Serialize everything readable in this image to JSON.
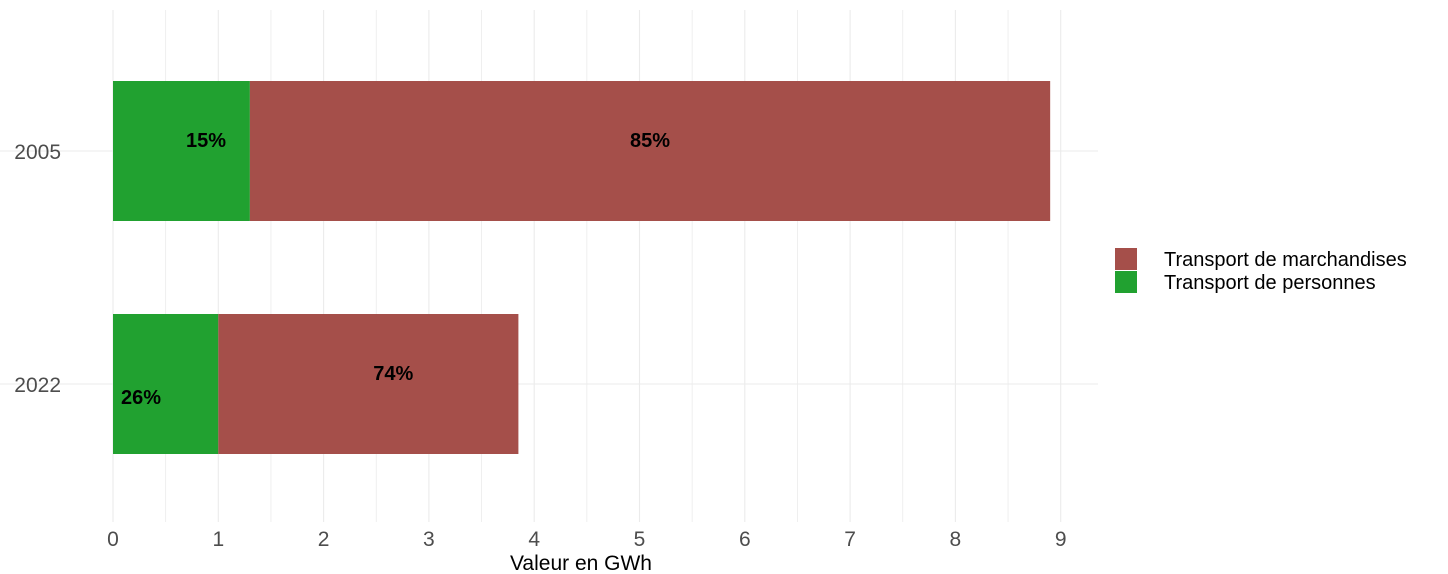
{
  "chart_data": {
    "type": "bar",
    "orientation": "horizontal",
    "stacked": true,
    "categories": [
      "2005",
      "2022"
    ],
    "series": [
      {
        "name": "Transport de personnes",
        "values": [
          1.3,
          1.0
        ],
        "labels": [
          "15%",
          "26%"
        ],
        "color": "#21a130"
      },
      {
        "name": "Transport de marchandises",
        "values": [
          7.6,
          2.85
        ],
        "labels": [
          "85%",
          "74%"
        ],
        "color": "#a54f4a"
      }
    ],
    "xlabel": "Valeur en GWh",
    "ylabel": "",
    "xlim": [
      0,
      9
    ],
    "xticks": [
      "0",
      "1",
      "2",
      "3",
      "4",
      "5",
      "6",
      "7",
      "8",
      "9"
    ],
    "grid": true,
    "legend": {
      "position": "right",
      "items": [
        "Transport de marchandises",
        "Transport de personnes"
      ]
    }
  }
}
